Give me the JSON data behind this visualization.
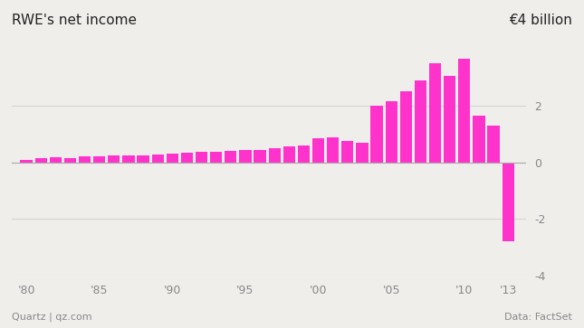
{
  "title_left": "RWE's net income",
  "title_right": "€4 billion",
  "footer_left": "Quartz | qz.com",
  "footer_right": "Data: FactSet",
  "bar_color": "#ff33cc",
  "background_color": "#f0eeeb",
  "years": [
    1980,
    1981,
    1982,
    1983,
    1984,
    1985,
    1986,
    1987,
    1988,
    1989,
    1990,
    1991,
    1992,
    1993,
    1994,
    1995,
    1996,
    1997,
    1998,
    1999,
    2000,
    2001,
    2002,
    2003,
    2004,
    2005,
    2006,
    2007,
    2008,
    2009,
    2010,
    2011,
    2012,
    2013
  ],
  "values": [
    0.1,
    0.15,
    0.18,
    0.16,
    0.2,
    0.22,
    0.23,
    0.25,
    0.26,
    0.27,
    0.3,
    0.33,
    0.36,
    0.36,
    0.4,
    0.43,
    0.45,
    0.5,
    0.57,
    0.6,
    0.85,
    0.9,
    0.76,
    0.7,
    2.0,
    2.15,
    2.5,
    2.9,
    3.5,
    3.05,
    3.65,
    1.65,
    1.3,
    -2.8
  ],
  "ylim": [
    -4,
    4
  ],
  "yticks": [
    -4,
    -2,
    0,
    2
  ],
  "xtick_labels": [
    "'80",
    "'85",
    "'90",
    "'95",
    "'00",
    "'05",
    "'10",
    "'13"
  ],
  "xtick_positions": [
    1980,
    1985,
    1990,
    1995,
    2000,
    2005,
    2010,
    2013
  ],
  "grid_color": "#d8d5d0",
  "zero_line_color": "#aaaaaa",
  "axis_label_color": "#888888",
  "title_color": "#222222"
}
